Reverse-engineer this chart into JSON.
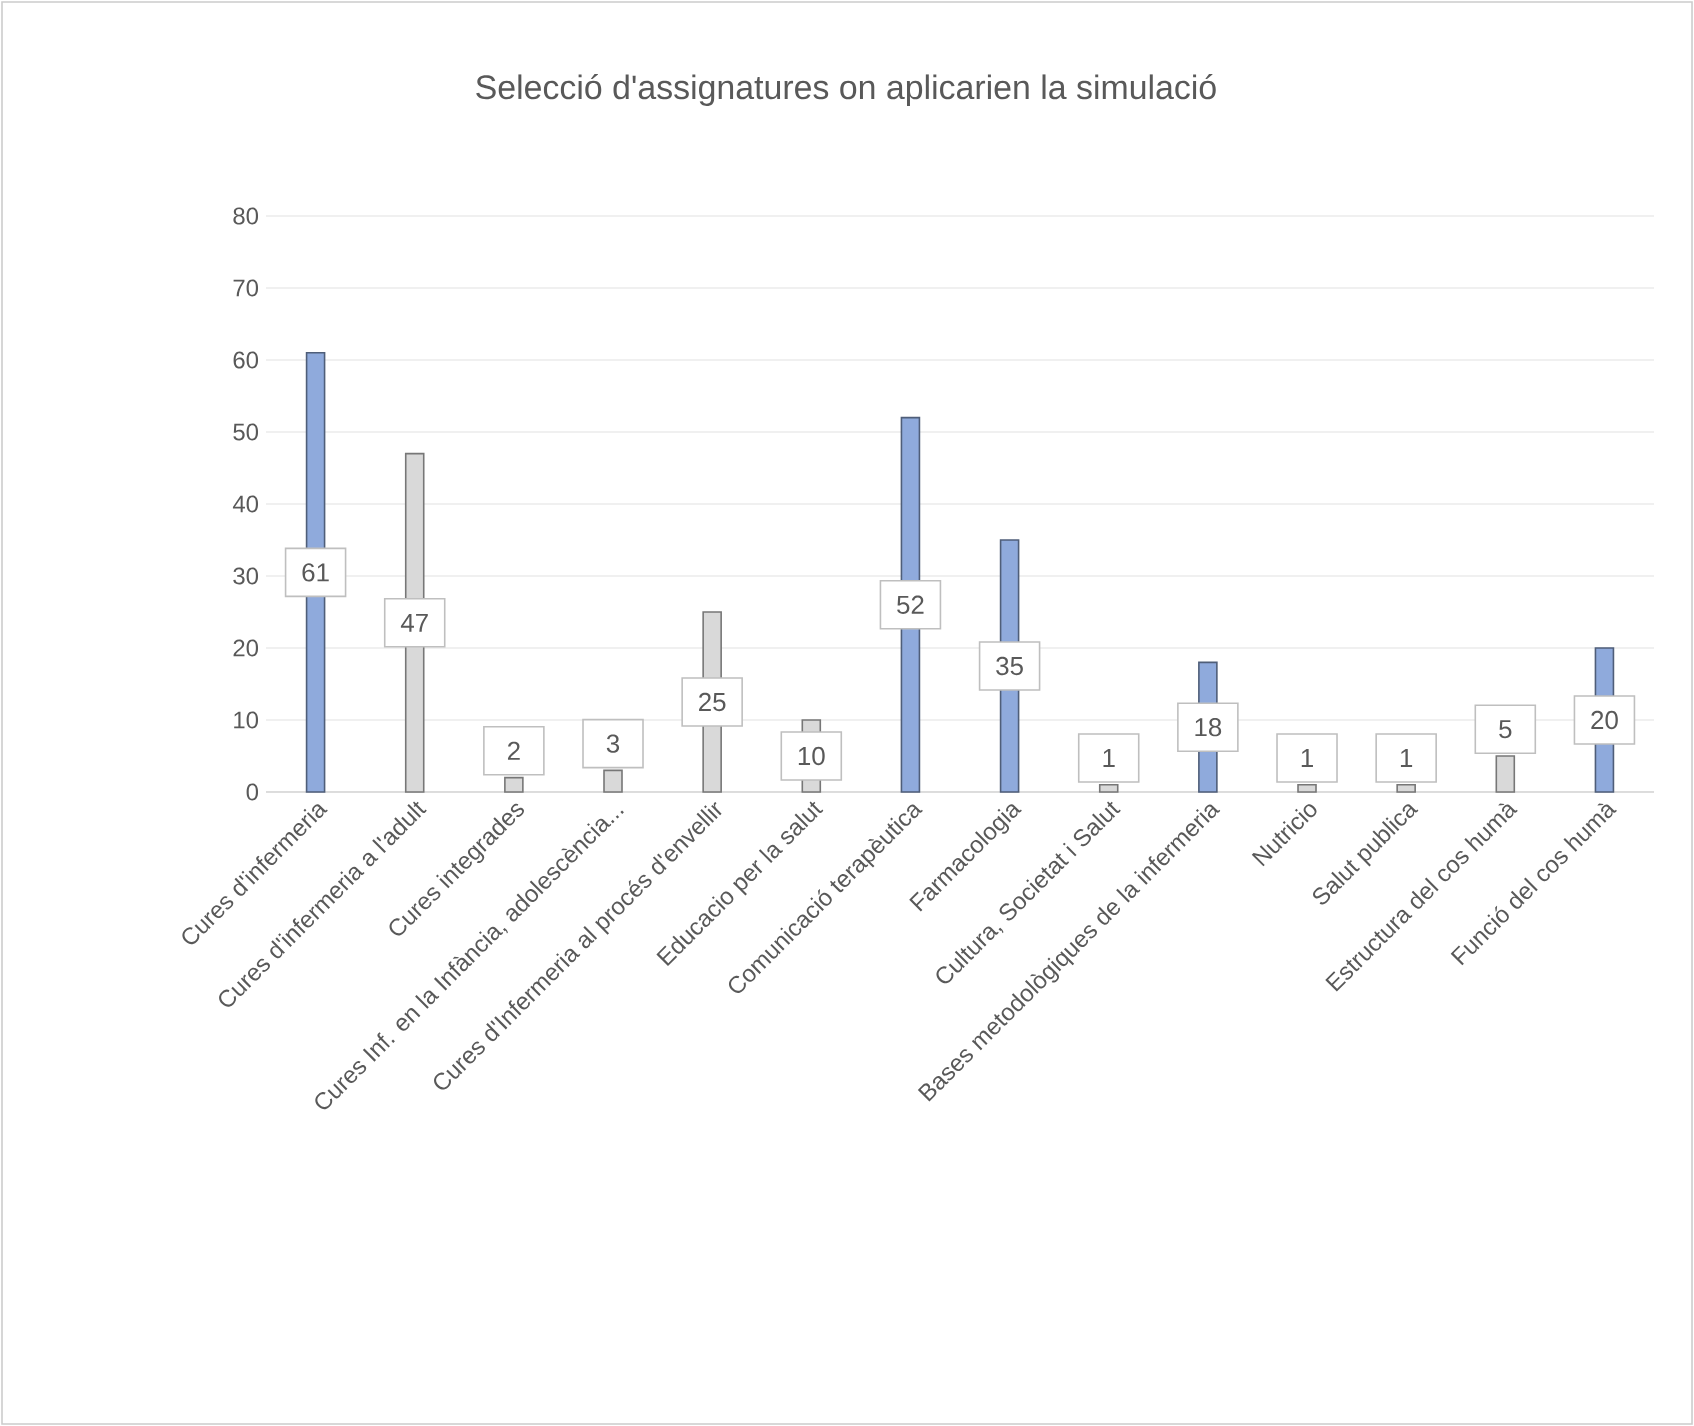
{
  "chart_data": {
    "type": "bar",
    "title": "Selecció d'assignatures on aplicarien la simulació",
    "categories": [
      "Cures d'infermeria",
      "Cures d'infermeria a l'adult",
      "Cures integrades",
      "Cures Inf. en la Infància, adolescència...",
      "Cures d'Infermeria al procés d'envellir",
      "Educacio per la salut",
      "Comunicació terapèutica",
      "Farmacologia",
      "Cultura, Societat i Salut",
      "Bases metodològiques de la infermeria",
      "Nutricio",
      "Salut publica",
      "Estructura del cos humà",
      "Funció del cos humà"
    ],
    "values": [
      61,
      47,
      2,
      3,
      25,
      10,
      52,
      35,
      1,
      18,
      1,
      1,
      5,
      20
    ],
    "colors": [
      "#8faadc",
      "#d9d9d9",
      "#d9d9d9",
      "#d9d9d9",
      "#d9d9d9",
      "#d9d9d9",
      "#8faadc",
      "#8faadc",
      "#d9d9d9",
      "#8faadc",
      "#d9d9d9",
      "#d9d9d9",
      "#d9d9d9",
      "#8faadc"
    ],
    "ylim": [
      0,
      80
    ],
    "yticks": [
      0,
      10,
      20,
      30,
      40,
      50,
      60,
      70,
      80
    ],
    "grid": "y",
    "data_labels": true
  }
}
